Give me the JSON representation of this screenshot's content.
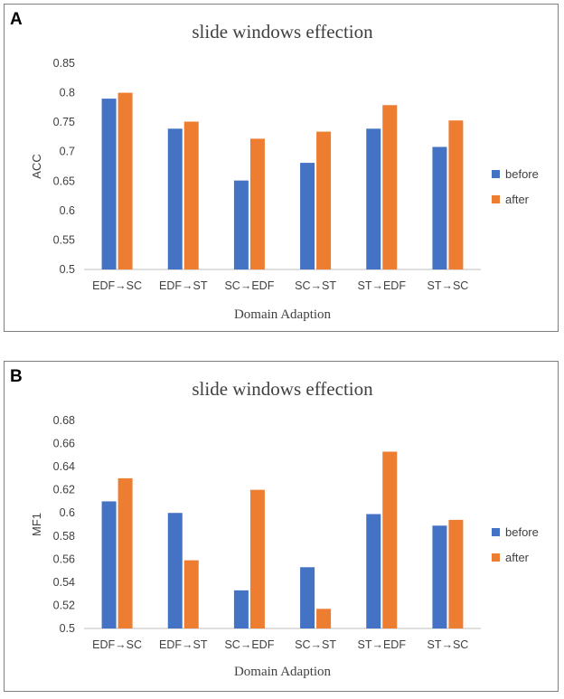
{
  "chart_data": [
    {
      "type": "bar",
      "panel_label": "A",
      "title": "slide windows effection",
      "xlabel": "Domain Adaption",
      "ylabel": "ACC",
      "categories": [
        "EDF→SC",
        "EDF→ST",
        "SC→EDF",
        "SC→ST",
        "ST→EDF",
        "ST→SC"
      ],
      "series": [
        {
          "name": "before",
          "color": "#4472c4",
          "values": [
            0.79,
            0.739,
            0.651,
            0.681,
            0.739,
            0.708
          ]
        },
        {
          "name": "after",
          "color": "#ed7d31",
          "values": [
            0.8,
            0.751,
            0.722,
            0.734,
            0.779,
            0.753
          ]
        }
      ],
      "ylim": [
        0.5,
        0.85
      ],
      "yticks": [
        "0.5",
        "0.55",
        "0.6",
        "0.65",
        "0.7",
        "0.75",
        "0.8",
        "0.85"
      ],
      "yticks_values": [
        0.5,
        0.55,
        0.6,
        0.65,
        0.7,
        0.75,
        0.8,
        0.85
      ],
      "legend": "right",
      "grid": false
    },
    {
      "type": "bar",
      "panel_label": "B",
      "title": "slide windows effection",
      "xlabel": "Domain Adaption",
      "ylabel": "MF1",
      "categories": [
        "EDF→SC",
        "EDF→ST",
        "SC→EDF",
        "SC→ST",
        "ST→EDF",
        "ST→SC"
      ],
      "series": [
        {
          "name": "before",
          "color": "#4472c4",
          "values": [
            0.61,
            0.6,
            0.533,
            0.553,
            0.599,
            0.589
          ]
        },
        {
          "name": "after",
          "color": "#ed7d31",
          "values": [
            0.63,
            0.559,
            0.62,
            0.517,
            0.653,
            0.594
          ]
        }
      ],
      "ylim": [
        0.5,
        0.68
      ],
      "yticks": [
        "0.5",
        "0.52",
        "0.54",
        "0.56",
        "0.58",
        "0.6",
        "0.62",
        "0.64",
        "0.66",
        "0.68"
      ],
      "yticks_values": [
        0.5,
        0.52,
        0.54,
        0.56,
        0.58,
        0.6,
        0.62,
        0.64,
        0.66,
        0.68
      ],
      "legend": "right",
      "grid": false
    }
  ]
}
